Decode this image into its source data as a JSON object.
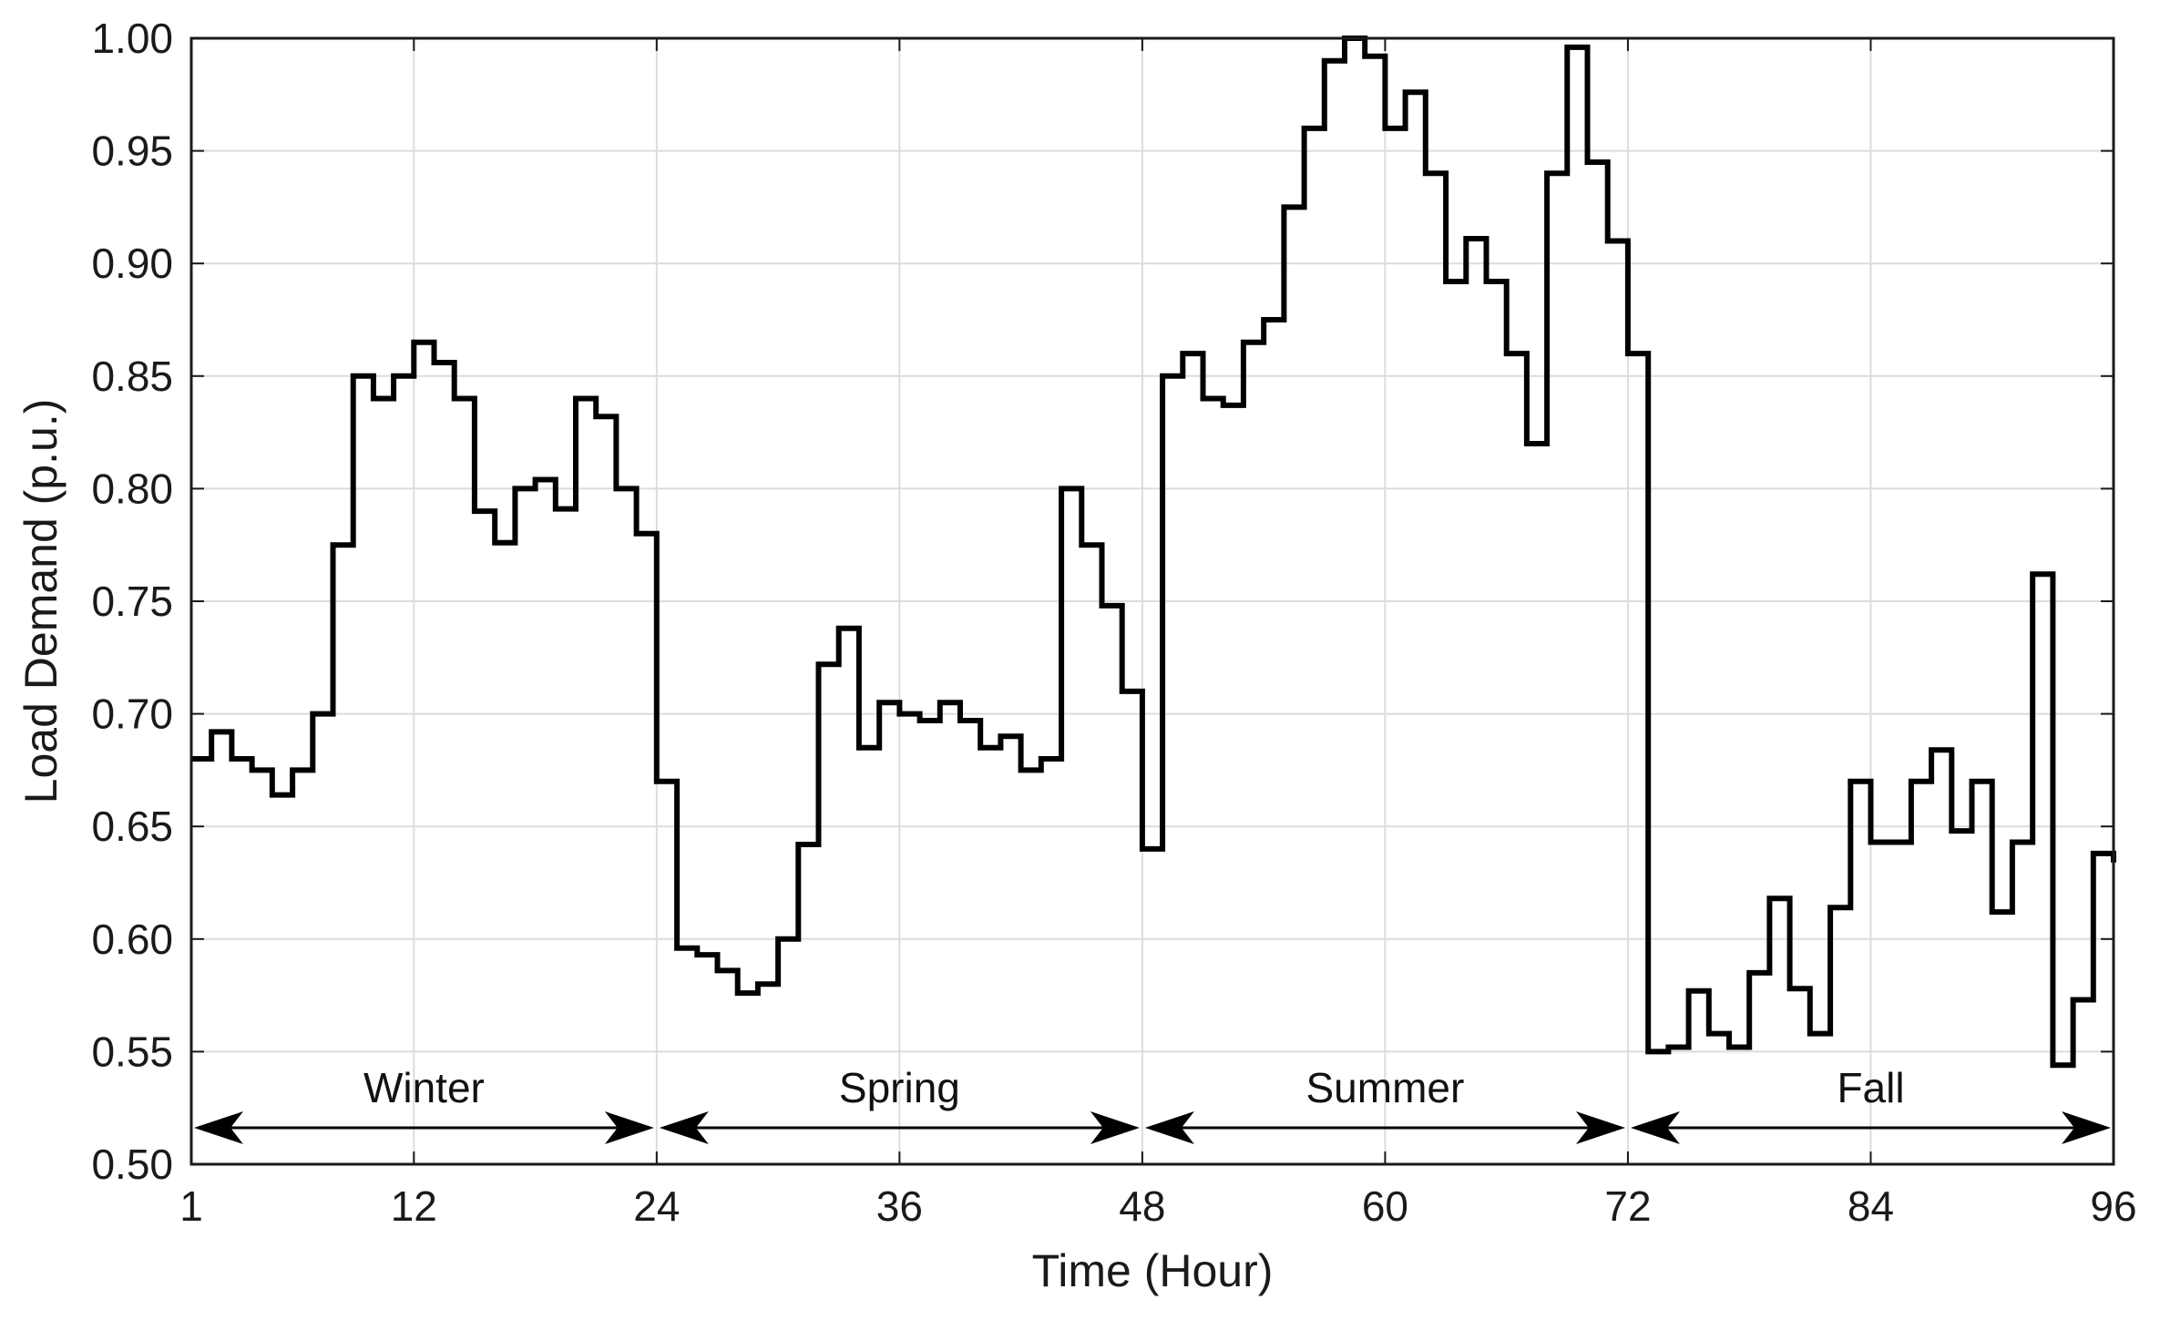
{
  "chart_data": {
    "type": "line",
    "step": true,
    "title": "",
    "xlabel": "Time (Hour)",
    "ylabel": "Load Demand (p.u.)",
    "xlim": [
      1,
      96
    ],
    "ylim": [
      0.5,
      1.0
    ],
    "x_ticks": [
      1,
      12,
      24,
      36,
      48,
      60,
      72,
      84,
      96
    ],
    "x_tick_labels": [
      "1",
      "12",
      "24",
      "36",
      "48",
      "60",
      "72",
      "84",
      "96"
    ],
    "y_ticks": [
      0.5,
      0.55,
      0.6,
      0.65,
      0.7,
      0.75,
      0.8,
      0.85,
      0.9,
      0.95,
      1.0
    ],
    "y_tick_labels": [
      "0.50",
      "0.55",
      "0.60",
      "0.65",
      "0.70",
      "0.75",
      "0.80",
      "0.85",
      "0.90",
      "0.95",
      "1.00"
    ],
    "grid": true,
    "line_color": "#000000",
    "series": [
      {
        "x": [
          1,
          2,
          3,
          4,
          5,
          6,
          7,
          8,
          9,
          10,
          11,
          12,
          13,
          14,
          15,
          16,
          17,
          18,
          19,
          20,
          21,
          22,
          23,
          24,
          25,
          26,
          27,
          28,
          29,
          30,
          31,
          32,
          33,
          34,
          35,
          36,
          37,
          38,
          39,
          40,
          41,
          42,
          43,
          44,
          45,
          46,
          47,
          48,
          49,
          50,
          51,
          52,
          53,
          54,
          55,
          56,
          57,
          58,
          59,
          60,
          61,
          62,
          63,
          64,
          65,
          66,
          67,
          68,
          69,
          70,
          71,
          72,
          73,
          74,
          75,
          76,
          77,
          78,
          79,
          80,
          81,
          82,
          83,
          84,
          85,
          86,
          87,
          88,
          89,
          90,
          91,
          92,
          93,
          94,
          95,
          96
        ],
        "values": [
          0.68,
          0.692,
          0.68,
          0.675,
          0.664,
          0.675,
          0.7,
          0.775,
          0.85,
          0.84,
          0.85,
          0.865,
          0.856,
          0.84,
          0.79,
          0.776,
          0.8,
          0.804,
          0.791,
          0.84,
          0.832,
          0.8,
          0.78,
          0.67,
          0.596,
          0.593,
          0.586,
          0.576,
          0.58,
          0.6,
          0.642,
          0.722,
          0.738,
          0.685,
          0.705,
          0.7,
          0.697,
          0.705,
          0.697,
          0.685,
          0.69,
          0.675,
          0.68,
          0.8,
          0.775,
          0.748,
          0.71,
          0.64,
          0.85,
          0.86,
          0.84,
          0.837,
          0.865,
          0.875,
          0.925,
          0.96,
          0.99,
          1.0,
          0.992,
          0.96,
          0.976,
          0.94,
          0.892,
          0.911,
          0.892,
          0.86,
          0.82,
          0.94,
          0.996,
          0.945,
          0.91,
          0.86,
          0.55,
          0.552,
          0.577,
          0.558,
          0.552,
          0.585,
          0.618,
          0.578,
          0.558,
          0.614,
          0.67,
          0.643,
          0.643,
          0.67,
          0.684,
          0.648,
          0.67,
          0.612,
          0.643,
          0.762,
          0.544,
          0.573,
          0.638,
          0.634
        ]
      }
    ],
    "annotations": [
      {
        "label": "Winter",
        "from": 1,
        "to": 24
      },
      {
        "label": "Spring",
        "from": 24,
        "to": 48
      },
      {
        "label": "Summer",
        "from": 48,
        "to": 72
      },
      {
        "label": "Fall",
        "from": 72,
        "to": 96
      }
    ]
  }
}
